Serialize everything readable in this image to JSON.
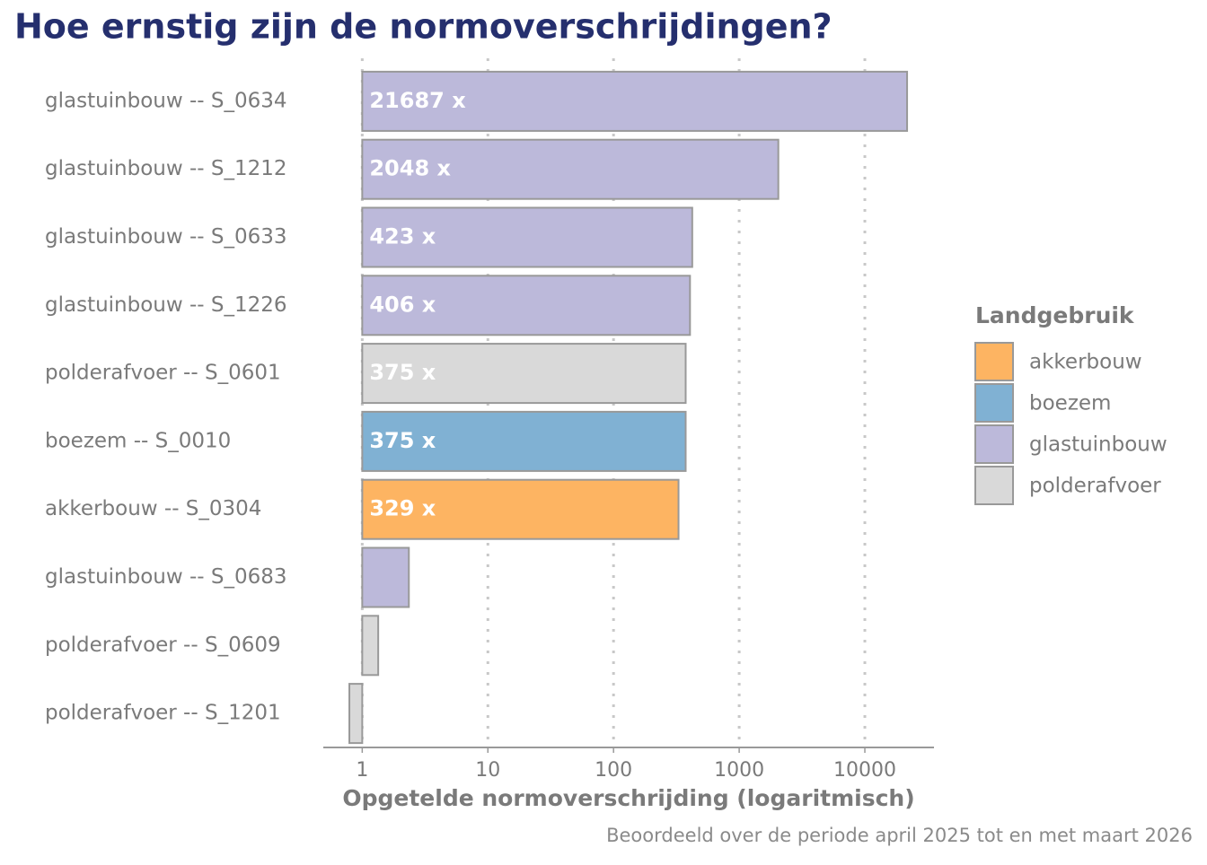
{
  "chart_data": {
    "type": "bar",
    "orientation": "horizontal",
    "title": "Hoe ernstig zijn de normoverschrijdingen?",
    "x_label": "Opgetelde normoverschrijding (logaritmisch)",
    "caption": "Beoordeeld over de periode april 2025 tot en met maart 2026",
    "categories": [
      "glastuinbouw -- S_0634",
      "glastuinbouw -- S_1212",
      "glastuinbouw -- S_0633",
      "glastuinbouw -- S_1226",
      "polderafvoer -- S_0601",
      "boezem -- S_0010",
      "akkerbouw -- S_0304",
      "glastuinbouw -- S_0683",
      "polderafvoer -- S_0609",
      "polderafvoer -- S_1201"
    ],
    "values": [
      21687,
      2048,
      423,
      406,
      375,
      375,
      329,
      2.35,
      1.34,
      0.79
    ],
    "value_labels": [
      "21687 x",
      "2048 x",
      "423 x",
      "406 x",
      "375 x",
      "375 x",
      "329 x",
      null,
      null,
      null
    ],
    "bar_colors": [
      "#bcb9da",
      "#bcb9da",
      "#bcb9da",
      "#bcb9da",
      "#d9d9d9",
      "#80b1d3",
      "#fdb462",
      "#bcb9da",
      "#d9d9d9",
      "#d9d9d9"
    ],
    "x_log_scale": true,
    "xlim": [
      0.49,
      35500
    ],
    "xticks": [
      1,
      10,
      100,
      1000,
      10000
    ],
    "grid": true,
    "legend": {
      "title": "Landgebruik",
      "position": "right",
      "items": [
        {
          "name": "akkerbouw",
          "color": "#fdb462"
        },
        {
          "name": "boezem",
          "color": "#80b1d3"
        },
        {
          "name": "glastuinbouw",
          "color": "#bcb9da"
        },
        {
          "name": "polderafvoer",
          "color": "#d9d9d9"
        }
      ]
    }
  }
}
